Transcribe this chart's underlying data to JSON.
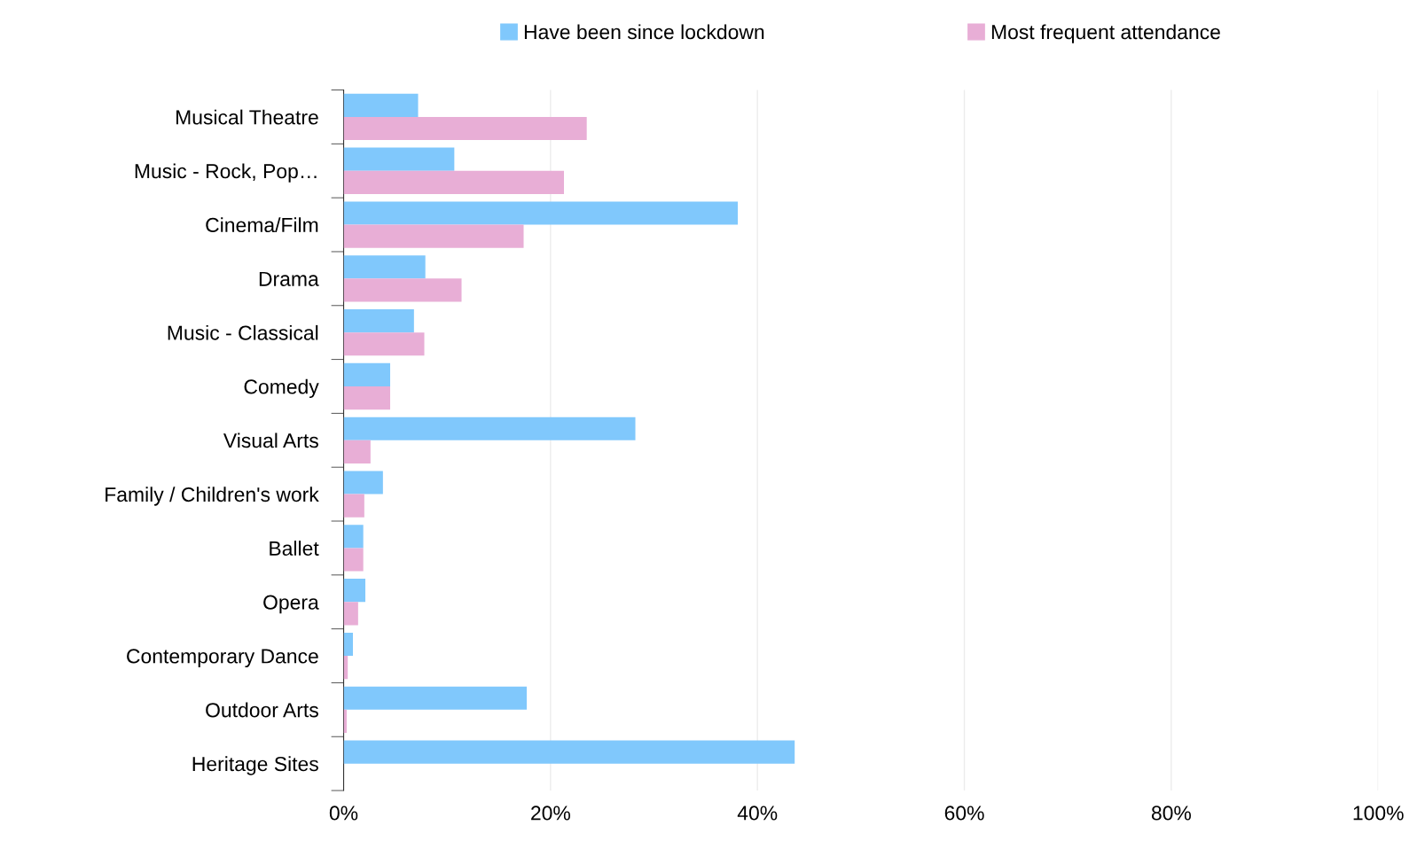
{
  "chart_data": {
    "type": "bar",
    "orientation": "horizontal",
    "categories": [
      "Musical Theatre",
      "Music - Rock, Pop…",
      "Cinema/Film",
      "Drama",
      "Music - Classical",
      "Comedy",
      "Visual Arts",
      "Family / Children's work",
      "Ballet",
      "Opera",
      "Contemporary Dance",
      "Outdoor Arts",
      "Heritage Sites"
    ],
    "series": [
      {
        "name": "Have been since lockdown",
        "color": "#80c8fc",
        "values": [
          7.2,
          10.7,
          38.1,
          7.9,
          6.8,
          4.5,
          28.2,
          3.8,
          1.9,
          2.1,
          0.9,
          17.7,
          43.6
        ]
      },
      {
        "name": "Most frequent attendance",
        "color": "#e8aed6",
        "values": [
          23.5,
          21.3,
          17.4,
          11.4,
          7.8,
          4.5,
          2.6,
          2.0,
          1.9,
          1.4,
          0.4,
          0.3,
          0
        ]
      }
    ],
    "xlim": [
      0,
      100
    ],
    "xticks": [
      {
        "value": 0,
        "label": "0%"
      },
      {
        "value": 20,
        "label": "20%"
      },
      {
        "value": 40,
        "label": "40%"
      },
      {
        "value": 60,
        "label": "60%"
      },
      {
        "value": 80,
        "label": "80%"
      },
      {
        "value": 100,
        "label": "100%"
      }
    ],
    "grid": "x",
    "legend": "top"
  }
}
